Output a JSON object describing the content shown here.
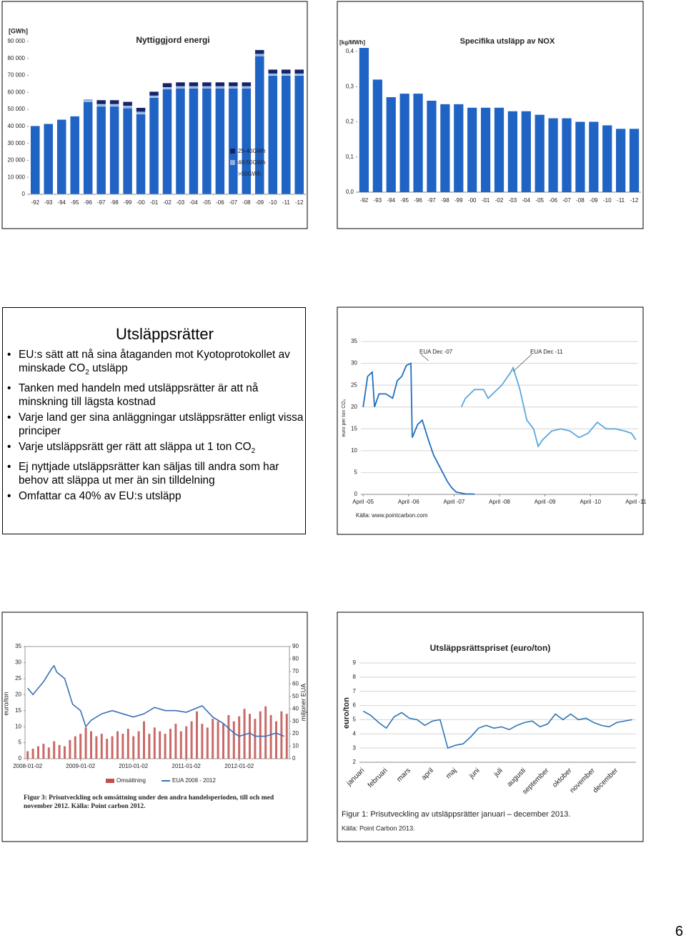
{
  "chart_data": [
    {
      "type": "bar",
      "stacked": true,
      "title": "Nyttiggjord energi",
      "unit": "[GWh]",
      "categories": [
        "-92",
        "-93",
        "-94",
        "-95",
        "-96",
        "-97",
        "-98",
        "-99",
        "-00",
        "-01",
        "-02",
        "-03",
        "-04",
        "-05",
        "-06",
        "-07",
        "-08",
        "-09",
        "-10",
        "-11",
        "-12"
      ],
      "series": [
        {
          "name": ">50GWh",
          "color": "#1f63c4",
          "values": [
            40300,
            41500,
            44000,
            46000,
            54500,
            51800,
            51800,
            50800,
            47300,
            57000,
            62000,
            62500,
            62500,
            62500,
            62500,
            62500,
            62500,
            81500,
            70000,
            70000,
            70000
          ]
        },
        {
          "name": "40-50GWh",
          "color": "#8fb0e0",
          "values": [
            0,
            0,
            0,
            0,
            1500,
            1200,
            1200,
            1200,
            1200,
            1000,
            1000,
            1000,
            1000,
            1000,
            1000,
            1000,
            1000,
            1000,
            1000,
            1000,
            1000
          ]
        },
        {
          "name": "25-40GWh",
          "color": "#15236a",
          "values": [
            0,
            0,
            0,
            0,
            0,
            2500,
            2500,
            2500,
            2500,
            2500,
            2500,
            2500,
            2500,
            2500,
            2500,
            2500,
            2500,
            2500,
            2500,
            2500,
            2500
          ]
        }
      ],
      "ylim": [
        0,
        90000
      ],
      "yticks": [
        0,
        {
          "value": 10000,
          "label": "10 000"
        },
        {
          "value": 20000,
          "label": "20 000"
        },
        {
          "value": 30000,
          "label": "30 000"
        },
        {
          "value": 40000,
          "label": "40 000"
        },
        {
          "value": 50000,
          "label": "50 000"
        },
        {
          "value": 60000,
          "label": "60 000"
        },
        {
          "value": 70000,
          "label": "70 000"
        },
        {
          "value": 80000,
          "label": "80 000"
        },
        {
          "value": 90000,
          "label": "90 000"
        }
      ],
      "legend": "lower-right"
    },
    {
      "type": "bar",
      "title": "Specifika utsläpp av NOX",
      "unit": "[kg/MWh]",
      "color": "#1f63c4",
      "categories": [
        "-92",
        "-93",
        "-94",
        "-95",
        "-96",
        "-97",
        "-98",
        "-99",
        "-00",
        "-01",
        "-02",
        "-03",
        "-04",
        "-05",
        "-06",
        "-07",
        "-08",
        "-09",
        "-10",
        "-11",
        "-12"
      ],
      "values": [
        0.41,
        0.32,
        0.27,
        0.28,
        0.28,
        0.26,
        0.25,
        0.25,
        0.24,
        0.24,
        0.24,
        0.23,
        0.23,
        0.22,
        0.21,
        0.21,
        0.2,
        0.2,
        0.19,
        0.18,
        0.18
      ],
      "ylim": [
        0,
        0.4
      ],
      "yticks": [
        {
          "value": 0,
          "label": "0,0"
        },
        {
          "value": 0.1,
          "label": "0,1"
        },
        {
          "value": 0.2,
          "label": "0,2"
        },
        {
          "value": 0.3,
          "label": "0,3"
        },
        {
          "value": 0.4,
          "label": "0,4"
        }
      ]
    },
    {
      "type": "line",
      "ylabel": "euro per ton CO₂",
      "source": "Källa: www.pointcarbon.com",
      "grid": true,
      "xlim": [
        2005.2,
        2011.3
      ],
      "xticks": [
        {
          "value": 2005.25,
          "label": "April -05"
        },
        {
          "value": 2006.25,
          "label": "April -06"
        },
        {
          "value": 2007.25,
          "label": "April -07"
        },
        {
          "value": 2008.25,
          "label": "April -08"
        },
        {
          "value": 2009.25,
          "label": "April -09"
        },
        {
          "value": 2010.25,
          "label": "April -10"
        },
        {
          "value": 2011.25,
          "label": "April -11"
        }
      ],
      "ylim": [
        0,
        35
      ],
      "yticks": [
        0,
        5,
        10,
        15,
        20,
        25,
        30,
        35
      ],
      "series": [
        {
          "name": "EUA Dec -07",
          "color": "#1f6fbf",
          "x": [
            2005.25,
            2005.35,
            2005.45,
            2005.5,
            2005.6,
            2005.75,
            2005.9,
            2006.0,
            2006.1,
            2006.2,
            2006.3,
            2006.33,
            2006.45,
            2006.55,
            2006.7,
            2006.8,
            2006.95,
            2007.1,
            2007.2,
            2007.3,
            2007.5,
            2007.7
          ],
          "values": [
            20,
            27,
            28,
            20,
            23,
            23,
            22,
            26,
            27,
            29.5,
            30,
            13,
            16,
            17,
            12,
            9,
            6,
            3,
            1.5,
            0.5,
            0.1,
            0.05
          ]
        },
        {
          "name": "EUA Dec -11",
          "color": "#5aa7dc",
          "x": [
            2007.41,
            2007.5,
            2007.7,
            2007.9,
            2008.0,
            2008.1,
            2008.3,
            2008.5,
            2008.55,
            2008.7,
            2008.85,
            2009.0,
            2009.1,
            2009.2,
            2009.4,
            2009.6,
            2009.8,
            2010.0,
            2010.2,
            2010.4,
            2010.6,
            2010.8,
            2011.0,
            2011.15,
            2011.25
          ],
          "values": [
            20,
            22,
            24,
            24,
            22,
            23,
            25,
            28,
            29,
            24,
            17,
            15,
            11,
            12.5,
            14.5,
            15,
            14.5,
            13,
            14,
            16.5,
            15,
            15,
            14.5,
            14,
            12.5
          ]
        }
      ]
    },
    {
      "type": "combo",
      "ylabel": "euro/ton",
      "y2label": "miljoner EUA",
      "caption": [
        "Figur 3: Prisutveckling och omsättning under den andra handelsperioden, till och med",
        "november 2012. Källa: Point carbon 2012."
      ],
      "xlim": [
        2007.95,
        2012.95
      ],
      "xticks": [
        {
          "value": 2008,
          "label": "2008-01-02"
        },
        {
          "value": 2009,
          "label": "2009-01-02"
        },
        {
          "value": 2010,
          "label": "2010-01-02"
        },
        {
          "value": 2011,
          "label": "2011-01-02"
        },
        {
          "value": 2012,
          "label": "2012-01-02"
        }
      ],
      "ylim": [
        0,
        35
      ],
      "yticks": [
        0,
        5,
        10,
        15,
        20,
        25,
        30,
        35
      ],
      "y2lim": [
        0,
        90
      ],
      "y2ticks": [
        0,
        10,
        20,
        30,
        40,
        50,
        60,
        70,
        80,
        90
      ],
      "series": [
        {
          "name": "Omsättning",
          "type": "bar",
          "axis": "y2",
          "color": "#c0504d",
          "x": [
            2008.0,
            2008.1,
            2008.2,
            2008.3,
            2008.4,
            2008.5,
            2008.6,
            2008.7,
            2008.8,
            2008.9,
            2009.0,
            2009.1,
            2009.2,
            2009.3,
            2009.4,
            2009.5,
            2009.6,
            2009.7,
            2009.8,
            2009.9,
            2010.0,
            2010.1,
            2010.2,
            2010.3,
            2010.4,
            2010.5,
            2010.6,
            2010.7,
            2010.8,
            2010.9,
            2011.0,
            2011.1,
            2011.2,
            2011.3,
            2011.4,
            2011.5,
            2011.6,
            2011.7,
            2011.8,
            2011.9,
            2012.0,
            2012.1,
            2012.2,
            2012.3,
            2012.4,
            2012.5,
            2012.6,
            2012.7,
            2012.8,
            2012.9
          ],
          "values": [
            6,
            8,
            10,
            12,
            9,
            14,
            11,
            10,
            15,
            18,
            20,
            25,
            22,
            18,
            20,
            16,
            18,
            22,
            20,
            24,
            18,
            22,
            30,
            20,
            25,
            22,
            20,
            24,
            28,
            22,
            26,
            30,
            38,
            28,
            25,
            32,
            30,
            28,
            35,
            30,
            34,
            40,
            36,
            32,
            38,
            42,
            35,
            30,
            38,
            36
          ]
        },
        {
          "name": "EUA 2008 - 2012",
          "type": "line",
          "color": "#3a6fb5",
          "x": [
            2008.0,
            2008.1,
            2008.2,
            2008.3,
            2008.45,
            2008.5,
            2008.55,
            2008.7,
            2008.85,
            2009.0,
            2009.1,
            2009.2,
            2009.4,
            2009.6,
            2009.8,
            2010.0,
            2010.2,
            2010.4,
            2010.6,
            2010.8,
            2011.0,
            2011.3,
            2011.5,
            2011.7,
            2011.9,
            2012.0,
            2012.2,
            2012.3,
            2012.5,
            2012.7,
            2012.85
          ],
          "values": [
            22,
            20,
            22,
            24,
            28,
            29,
            27,
            25,
            17,
            15,
            10,
            12,
            14,
            15,
            14,
            13,
            14,
            16,
            15,
            15,
            14.5,
            16.5,
            13,
            11,
            8,
            7,
            8,
            7,
            7,
            8,
            7
          ]
        }
      ]
    },
    {
      "type": "line",
      "title": "Utsläppsrättspriset (euro/ton)",
      "ylabel": "euro/ton",
      "grid": true,
      "color": "#2e75b6",
      "caption": "Figur 1: Prisutveckling av utsläppsrätter januari – december 2013.",
      "source": "Källa: Point Carbon 2013.",
      "categories": [
        "januari",
        null,
        null,
        "februari",
        null,
        null,
        "mars",
        null,
        null,
        "april",
        null,
        null,
        "maj",
        null,
        null,
        "juni",
        null,
        null,
        "juli",
        null,
        null,
        "augusti",
        null,
        null,
        "september",
        null,
        null,
        "oktober",
        null,
        null,
        "november",
        null,
        null,
        "december",
        null,
        null
      ],
      "values": [
        5.6,
        5.3,
        4.8,
        4.4,
        5.2,
        5.5,
        5.1,
        5.0,
        4.6,
        4.9,
        5.0,
        3.0,
        3.2,
        3.3,
        3.8,
        4.4,
        4.6,
        4.4,
        4.5,
        4.3,
        4.6,
        4.8,
        4.9,
        4.5,
        4.7,
        5.4,
        5.0,
        5.4,
        5.0,
        5.1,
        4.8,
        4.6,
        4.5,
        4.8,
        4.9,
        5.0
      ],
      "ylim": [
        2,
        9
      ],
      "yticks": [
        2,
        3,
        4,
        5,
        6,
        7,
        8,
        9
      ]
    }
  ],
  "slide": {
    "title": "Utsläppsrätter",
    "bullets": [
      {
        "text": "EU:s sätt att nå sina åtaganden mot Kyotoprotokollet av minskade CO",
        "sub": "2",
        "rest": " utsläpp"
      },
      "Tanken med handeln med utsläppsrätter är att nå minskning till lägsta kostnad",
      "Varje land ger sina anläggningar utsläppsrätter enligt vissa principer",
      {
        "text": "Varje utsläppsrätt ger rätt att släppa ut 1 ton CO",
        "sub": "2",
        "rest": ""
      },
      "Ej nyttjade utsläppsrätter kan säljas till andra som har behov att släppa ut mer än sin tilldelning",
      "Omfattar ca 40% av EU:s utsläpp"
    ]
  },
  "page_number": "6"
}
